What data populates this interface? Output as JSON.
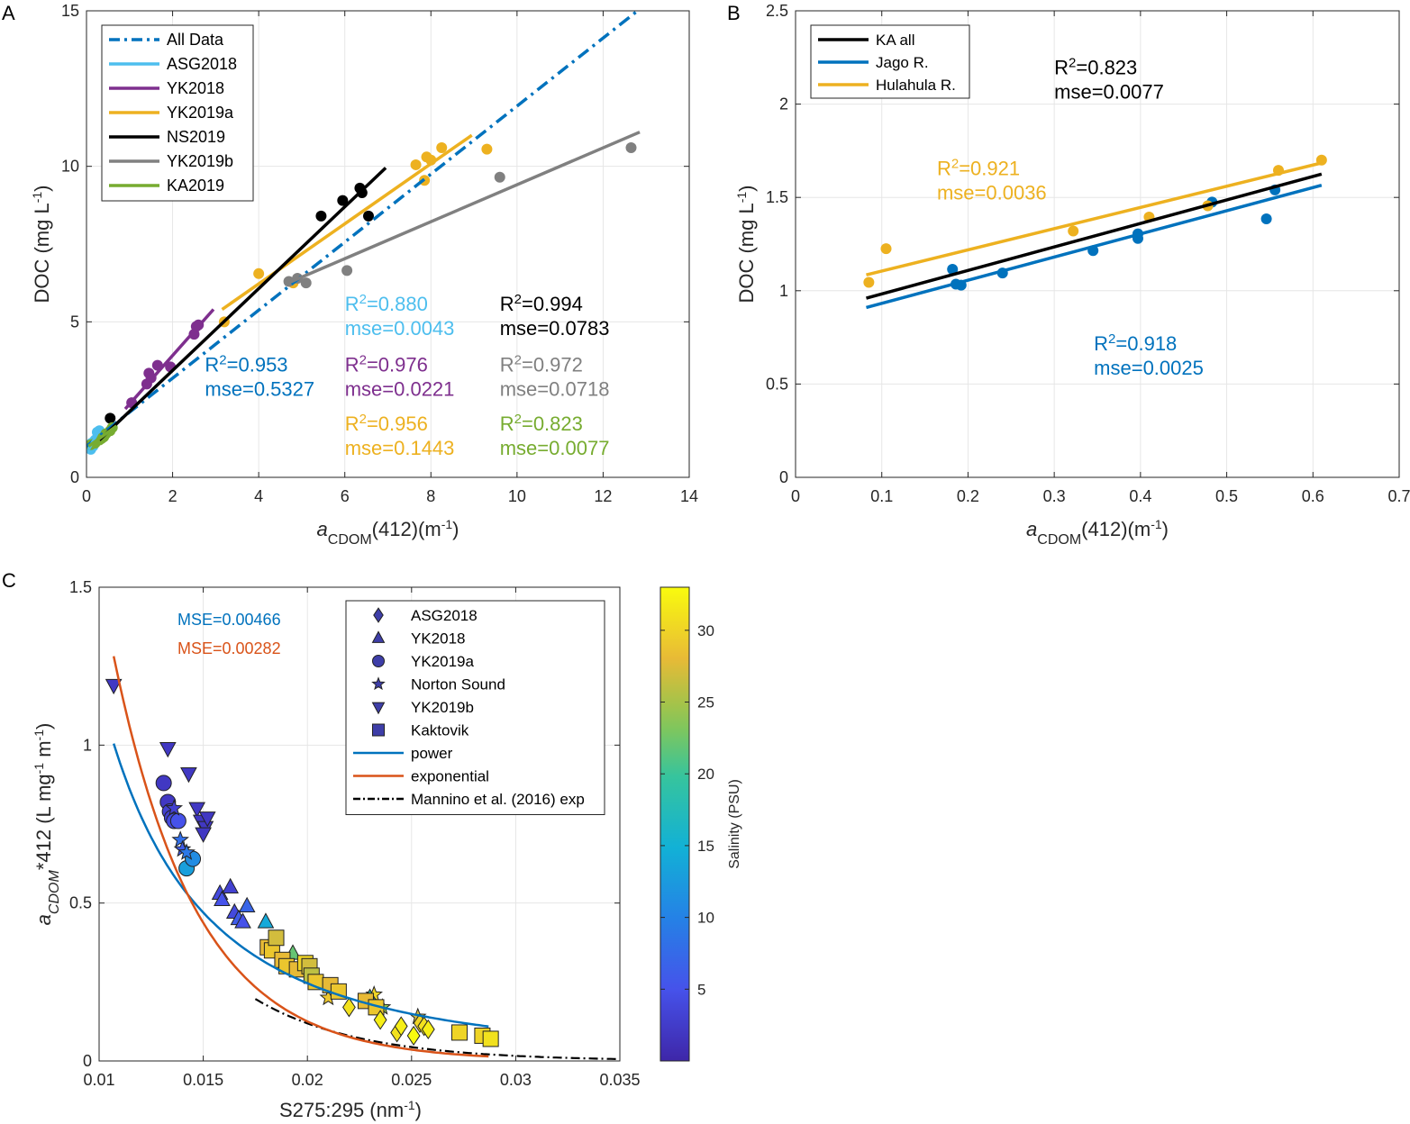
{
  "chart_data": [
    {
      "panel": "A",
      "type": "scatter",
      "xlabel_main": "a",
      "xlabel_sub": "CDOM",
      "xlabel_rest": "(412)(m",
      "xlabel_sup": "-1",
      "xlabel_close": ")",
      "ylabel_main": "DOC (mg L",
      "ylabel_sup": "-1",
      "ylabel_close": ")",
      "xlim": [
        0,
        14
      ],
      "ylim": [
        0,
        15
      ],
      "xticks": [
        0,
        2,
        4,
        6,
        8,
        10,
        12,
        14
      ],
      "yticks": [
        0,
        5,
        10,
        15
      ],
      "grid": true,
      "legend_position": "top-left",
      "series": [
        {
          "name": "All Data",
          "color": "#0072BD",
          "line": "dashdot",
          "fit": [
            [
              0,
              1.0
            ],
            [
              12.8,
              15.0
            ]
          ],
          "points": []
        },
        {
          "name": "ASG2018",
          "color": "#4DBEEE",
          "line": "solid",
          "fit": [
            [
              0.05,
              0.9
            ],
            [
              0.3,
              1.55
            ]
          ],
          "points": [
            [
              0.1,
              0.9
            ],
            [
              0.15,
              1.0
            ],
            [
              0.2,
              1.2
            ],
            [
              0.25,
              1.45
            ],
            [
              0.3,
              1.5
            ],
            [
              0.12,
              1.1
            ]
          ]
        },
        {
          "name": "YK2018",
          "color": "#7E2F8E",
          "line": "solid",
          "fit": [
            [
              0.9,
              2.2
            ],
            [
              2.95,
              5.4
            ]
          ],
          "points": [
            [
              1.05,
              2.4
            ],
            [
              1.4,
              3.0
            ],
            [
              1.45,
              3.35
            ],
            [
              1.65,
              3.6
            ],
            [
              1.95,
              3.55
            ],
            [
              2.5,
              4.6
            ],
            [
              2.55,
              4.85
            ],
            [
              2.6,
              4.9
            ],
            [
              1.5,
              3.2
            ]
          ]
        },
        {
          "name": "YK2019a",
          "color": "#EDB120",
          "line": "solid",
          "fit": [
            [
              3.15,
              5.4
            ],
            [
              8.95,
              11.0
            ]
          ],
          "points": [
            [
              3.2,
              5.0
            ],
            [
              4.0,
              6.55
            ],
            [
              4.8,
              6.25
            ],
            [
              7.65,
              10.05
            ],
            [
              7.85,
              9.55
            ],
            [
              7.9,
              10.3
            ],
            [
              8.0,
              10.2
            ],
            [
              8.25,
              10.6
            ],
            [
              9.3,
              10.55
            ]
          ]
        },
        {
          "name": "NS2019",
          "color": "#000000",
          "line": "solid",
          "fit": [
            [
              0.3,
              1.2
            ],
            [
              6.95,
              9.95
            ]
          ],
          "points": [
            [
              0.55,
              1.9
            ],
            [
              5.45,
              8.4
            ],
            [
              5.95,
              8.9
            ],
            [
              6.35,
              9.3
            ],
            [
              6.4,
              9.15
            ],
            [
              6.55,
              8.4
            ]
          ]
        },
        {
          "name": "YK2019b",
          "color": "#808080",
          "line": "solid",
          "fit": [
            [
              4.6,
              6.2
            ],
            [
              12.85,
              11.1
            ]
          ],
          "points": [
            [
              4.7,
              6.3
            ],
            [
              4.9,
              6.4
            ],
            [
              5.1,
              6.25
            ],
            [
              6.05,
              6.65
            ],
            [
              9.6,
              9.65
            ],
            [
              12.65,
              10.6
            ]
          ]
        },
        {
          "name": "KA2019",
          "color": "#77AC30",
          "line": "solid",
          "fit": [
            [
              0.05,
              1.0
            ],
            [
              0.7,
              1.65
            ]
          ],
          "points": [
            [
              0.1,
              1.05
            ],
            [
              0.2,
              1.1
            ],
            [
              0.3,
              1.2
            ],
            [
              0.4,
              1.3
            ],
            [
              0.45,
              1.4
            ],
            [
              0.55,
              1.5
            ],
            [
              0.6,
              1.6
            ],
            [
              0.35,
              1.25
            ]
          ]
        }
      ],
      "annotations": [
        {
          "text": "R",
          "sup": "2",
          "rest": "=0.880",
          "text2": "mse=0.0043",
          "color": "#4DBEEE",
          "x": 6.0,
          "y": 5.35
        },
        {
          "text": "R",
          "sup": "2",
          "rest": "=0.994",
          "text2": "mse=0.0783",
          "color": "#000000",
          "x": 9.6,
          "y": 5.35
        },
        {
          "text": "R",
          "sup": "2",
          "rest": "=0.953",
          "text2": "mse=0.5327",
          "color": "#0072BD",
          "x": 2.75,
          "y": 3.4
        },
        {
          "text": "R",
          "sup": "2",
          "rest": "=0.976",
          "text2": "mse=0.0221",
          "color": "#7E2F8E",
          "x": 6.0,
          "y": 3.4
        },
        {
          "text": "R",
          "sup": "2",
          "rest": "=0.972",
          "text2": "mse=0.0718",
          "color": "#808080",
          "x": 9.6,
          "y": 3.4
        },
        {
          "text": "R",
          "sup": "2",
          "rest": "=0.956",
          "text2": "mse=0.1443",
          "color": "#EDB120",
          "x": 6.0,
          "y": 1.5
        },
        {
          "text": "R",
          "sup": "2",
          "rest": "=0.823",
          "text2": "mse=0.0077",
          "color": "#77AC30",
          "x": 9.6,
          "y": 1.5
        }
      ]
    },
    {
      "panel": "B",
      "type": "scatter",
      "xlabel_main": "a",
      "xlabel_sub": "CDOM",
      "xlabel_rest": "(412)(m",
      "xlabel_sup": "-1",
      "xlabel_close": ")",
      "ylabel_main": "DOC (mg L",
      "ylabel_sup": "-1",
      "ylabel_close": ")",
      "xlim": [
        0,
        0.7
      ],
      "ylim": [
        0,
        2.5
      ],
      "xticks": [
        0,
        0.1,
        0.2,
        0.3,
        0.4,
        0.5,
        0.6,
        0.7
      ],
      "yticks": [
        0,
        0.5,
        1,
        1.5,
        2,
        2.5
      ],
      "grid": true,
      "legend_position": "top-left",
      "series": [
        {
          "name": "KA all",
          "color": "#000000",
          "fit": [
            [
              0.082,
              0.96
            ],
            [
              0.61,
              1.625
            ]
          ],
          "points": []
        },
        {
          "name": "Jago R.",
          "color": "#0072BD",
          "fit": [
            [
              0.082,
              0.91
            ],
            [
              0.61,
              1.565
            ]
          ],
          "points": [
            [
              0.182,
              1.115
            ],
            [
              0.186,
              1.035
            ],
            [
              0.192,
              1.03
            ],
            [
              0.24,
              1.095
            ],
            [
              0.345,
              1.215
            ],
            [
              0.397,
              1.305
            ],
            [
              0.397,
              1.28
            ],
            [
              0.483,
              1.475
            ],
            [
              0.546,
              1.385
            ],
            [
              0.556,
              1.54
            ]
          ]
        },
        {
          "name": "Hulahula R.",
          "color": "#EDB120",
          "fit": [
            [
              0.082,
              1.085
            ],
            [
              0.61,
              1.685
            ]
          ],
          "points": [
            [
              0.085,
              1.045
            ],
            [
              0.105,
              1.225
            ],
            [
              0.322,
              1.32
            ],
            [
              0.41,
              1.395
            ],
            [
              0.478,
              1.455
            ],
            [
              0.56,
              1.645
            ],
            [
              0.61,
              1.7
            ]
          ]
        }
      ],
      "annotations": [
        {
          "text": "R",
          "sup": "2",
          "rest": "=0.823",
          "text2": "mse=0.0077",
          "color": "#000000",
          "x": 0.3,
          "y": 2.16
        },
        {
          "text": "R",
          "sup": "2",
          "rest": "=0.921",
          "text2": "mse=0.0036",
          "color": "#EDB120",
          "x": 0.164,
          "y": 1.62
        },
        {
          "text": "R",
          "sup": "2",
          "rest": "=0.918",
          "text2": "mse=0.0025",
          "color": "#0072BD",
          "x": 0.346,
          "y": 0.68
        }
      ]
    },
    {
      "panel": "C",
      "type": "scatter",
      "xlabel_main": "S275:295 (nm",
      "xlabel_sup": "-1",
      "xlabel_close": ")",
      "ylabel_main": "a",
      "ylabel_sub": "CDOM",
      "ylabel_rest": "*412 (L mg",
      "ylabel_sup": "-1",
      "ylabel_rest2": " m",
      "ylabel_sup2": "-1",
      "ylabel_close": ")",
      "xlim": [
        0.01,
        0.035
      ],
      "ylim": [
        0,
        1.5
      ],
      "xticks": [
        "0.01",
        "0.015",
        "0.02",
        "0.025",
        "0.03",
        "0.035"
      ],
      "yticks": [
        "0",
        "0.5",
        "1",
        "1.5"
      ],
      "grid": true,
      "legend_position": "top-right",
      "colorbar": {
        "label": "Salinity (PSU)",
        "min": 0,
        "max": 33,
        "ticks": [
          5,
          10,
          15,
          20,
          25,
          30
        ]
      },
      "legend_items": [
        {
          "name": "ASG2018",
          "marker": "diamond"
        },
        {
          "name": "YK2018",
          "marker": "triangle-up"
        },
        {
          "name": "YK2019a",
          "marker": "circle"
        },
        {
          "name": "Norton Sound",
          "marker": "star"
        },
        {
          "name": "YK2019b",
          "marker": "triangle-down"
        },
        {
          "name": "Kaktovik",
          "marker": "square"
        },
        {
          "name": "power",
          "line": "#0072BD"
        },
        {
          "name": "exponential",
          "line": "#D95319"
        },
        {
          "name": "Mannino et al. (2016) exp",
          "line": "#000000",
          "dash": true
        }
      ],
      "mse": [
        {
          "text": "MSE=0.00466",
          "color": "#0072BD"
        },
        {
          "text": "MSE=0.00282",
          "color": "#D95319"
        }
      ],
      "curves": {
        "power": {
          "a": 3.7e-05,
          "b": -2.25,
          "x0": 0.0107,
          "x1": 0.0287,
          "color": "#0072BD"
        },
        "exponential": {
          "a": 18.6,
          "b": -250,
          "x0": 0.0107,
          "x1": 0.0287,
          "color": "#D95319"
        },
        "mannino": {
          "a": 6.5,
          "b": -200,
          "x0": 0.0175,
          "x1": 0.035,
          "color": "#000000"
        }
      },
      "points": [
        {
          "m": "triangle-down",
          "x": 0.0107,
          "y": 1.19,
          "s": 2
        },
        {
          "m": "triangle-down",
          "x": 0.0133,
          "y": 0.99,
          "s": 2
        },
        {
          "m": "triangle-down",
          "x": 0.0143,
          "y": 0.91,
          "s": 2
        },
        {
          "m": "triangle-down",
          "x": 0.0147,
          "y": 0.8,
          "s": 2
        },
        {
          "m": "triangle-down",
          "x": 0.0149,
          "y": 0.76,
          "s": 2
        },
        {
          "m": "triangle-down",
          "x": 0.0151,
          "y": 0.74,
          "s": 2
        },
        {
          "m": "triangle-down",
          "x": 0.0152,
          "y": 0.77,
          "s": 2
        },
        {
          "m": "triangle-down",
          "x": 0.015,
          "y": 0.72,
          "s": 2
        },
        {
          "m": "circle",
          "x": 0.0131,
          "y": 0.88,
          "s": 2
        },
        {
          "m": "circle",
          "x": 0.0133,
          "y": 0.82,
          "s": 2
        },
        {
          "m": "circle",
          "x": 0.0134,
          "y": 0.79,
          "s": 3
        },
        {
          "m": "circle",
          "x": 0.0135,
          "y": 0.77,
          "s": 3
        },
        {
          "m": "circle",
          "x": 0.0136,
          "y": 0.76,
          "s": 4
        },
        {
          "m": "circle",
          "x": 0.0138,
          "y": 0.76,
          "s": 5
        },
        {
          "m": "circle",
          "x": 0.0142,
          "y": 0.61,
          "s": 13
        },
        {
          "m": "circle",
          "x": 0.0145,
          "y": 0.64,
          "s": 11
        },
        {
          "m": "star",
          "x": 0.0136,
          "y": 0.8,
          "s": 3
        },
        {
          "m": "star",
          "x": 0.0139,
          "y": 0.7,
          "s": 8
        },
        {
          "m": "star",
          "x": 0.014,
          "y": 0.67,
          "s": 6
        },
        {
          "m": "star",
          "x": 0.0142,
          "y": 0.66,
          "s": 9
        },
        {
          "m": "star",
          "x": 0.021,
          "y": 0.2,
          "s": 29
        },
        {
          "m": "star",
          "x": 0.0232,
          "y": 0.21,
          "s": 30
        },
        {
          "m": "star",
          "x": 0.0236,
          "y": 0.17,
          "s": 24
        },
        {
          "m": "star",
          "x": 0.0253,
          "y": 0.14,
          "s": 27
        },
        {
          "m": "triangle-up",
          "x": 0.0158,
          "y": 0.53,
          "s": 4
        },
        {
          "m": "triangle-up",
          "x": 0.0159,
          "y": 0.51,
          "s": 5
        },
        {
          "m": "triangle-up",
          "x": 0.0163,
          "y": 0.55,
          "s": 3
        },
        {
          "m": "triangle-up",
          "x": 0.0165,
          "y": 0.47,
          "s": 4
        },
        {
          "m": "triangle-up",
          "x": 0.0167,
          "y": 0.45,
          "s": 6
        },
        {
          "m": "triangle-up",
          "x": 0.0169,
          "y": 0.44,
          "s": 5
        },
        {
          "m": "triangle-up",
          "x": 0.0171,
          "y": 0.49,
          "s": 7
        },
        {
          "m": "triangle-up",
          "x": 0.018,
          "y": 0.44,
          "s": 14
        },
        {
          "m": "triangle-up",
          "x": 0.0193,
          "y": 0.34,
          "s": 22
        },
        {
          "m": "triangle-up",
          "x": 0.023,
          "y": 0.2,
          "s": 18
        },
        {
          "m": "square",
          "x": 0.0181,
          "y": 0.36,
          "s": 28
        },
        {
          "m": "square",
          "x": 0.0183,
          "y": 0.35,
          "s": 29
        },
        {
          "m": "square",
          "x": 0.0185,
          "y": 0.39,
          "s": 27
        },
        {
          "m": "square",
          "x": 0.0188,
          "y": 0.32,
          "s": 28
        },
        {
          "m": "square",
          "x": 0.019,
          "y": 0.3,
          "s": 29
        },
        {
          "m": "square",
          "x": 0.0195,
          "y": 0.29,
          "s": 28
        },
        {
          "m": "square",
          "x": 0.0199,
          "y": 0.31,
          "s": 30
        },
        {
          "m": "square",
          "x": 0.0201,
          "y": 0.3,
          "s": 27
        },
        {
          "m": "square",
          "x": 0.0202,
          "y": 0.27,
          "s": 26
        },
        {
          "m": "square",
          "x": 0.0204,
          "y": 0.25,
          "s": 29
        },
        {
          "m": "square",
          "x": 0.0211,
          "y": 0.24,
          "s": 28
        },
        {
          "m": "square",
          "x": 0.0215,
          "y": 0.22,
          "s": 29
        },
        {
          "m": "square",
          "x": 0.0228,
          "y": 0.19,
          "s": 28
        },
        {
          "m": "square",
          "x": 0.0233,
          "y": 0.17,
          "s": 29
        },
        {
          "m": "square",
          "x": 0.0273,
          "y": 0.09,
          "s": 30
        },
        {
          "m": "square",
          "x": 0.0284,
          "y": 0.08,
          "s": 30
        },
        {
          "m": "square",
          "x": 0.0288,
          "y": 0.07,
          "s": 31
        },
        {
          "m": "diamond",
          "x": 0.022,
          "y": 0.17,
          "s": 31
        },
        {
          "m": "diamond",
          "x": 0.0235,
          "y": 0.13,
          "s": 32
        },
        {
          "m": "diamond",
          "x": 0.0243,
          "y": 0.09,
          "s": 31
        },
        {
          "m": "diamond",
          "x": 0.0245,
          "y": 0.11,
          "s": 32
        },
        {
          "m": "diamond",
          "x": 0.0251,
          "y": 0.08,
          "s": 33
        },
        {
          "m": "diamond",
          "x": 0.0254,
          "y": 0.12,
          "s": 30
        },
        {
          "m": "diamond",
          "x": 0.0256,
          "y": 0.11,
          "s": 31
        },
        {
          "m": "diamond",
          "x": 0.0258,
          "y": 0.1,
          "s": 32
        }
      ]
    }
  ],
  "panel_labels": [
    "A",
    "B",
    "C"
  ]
}
